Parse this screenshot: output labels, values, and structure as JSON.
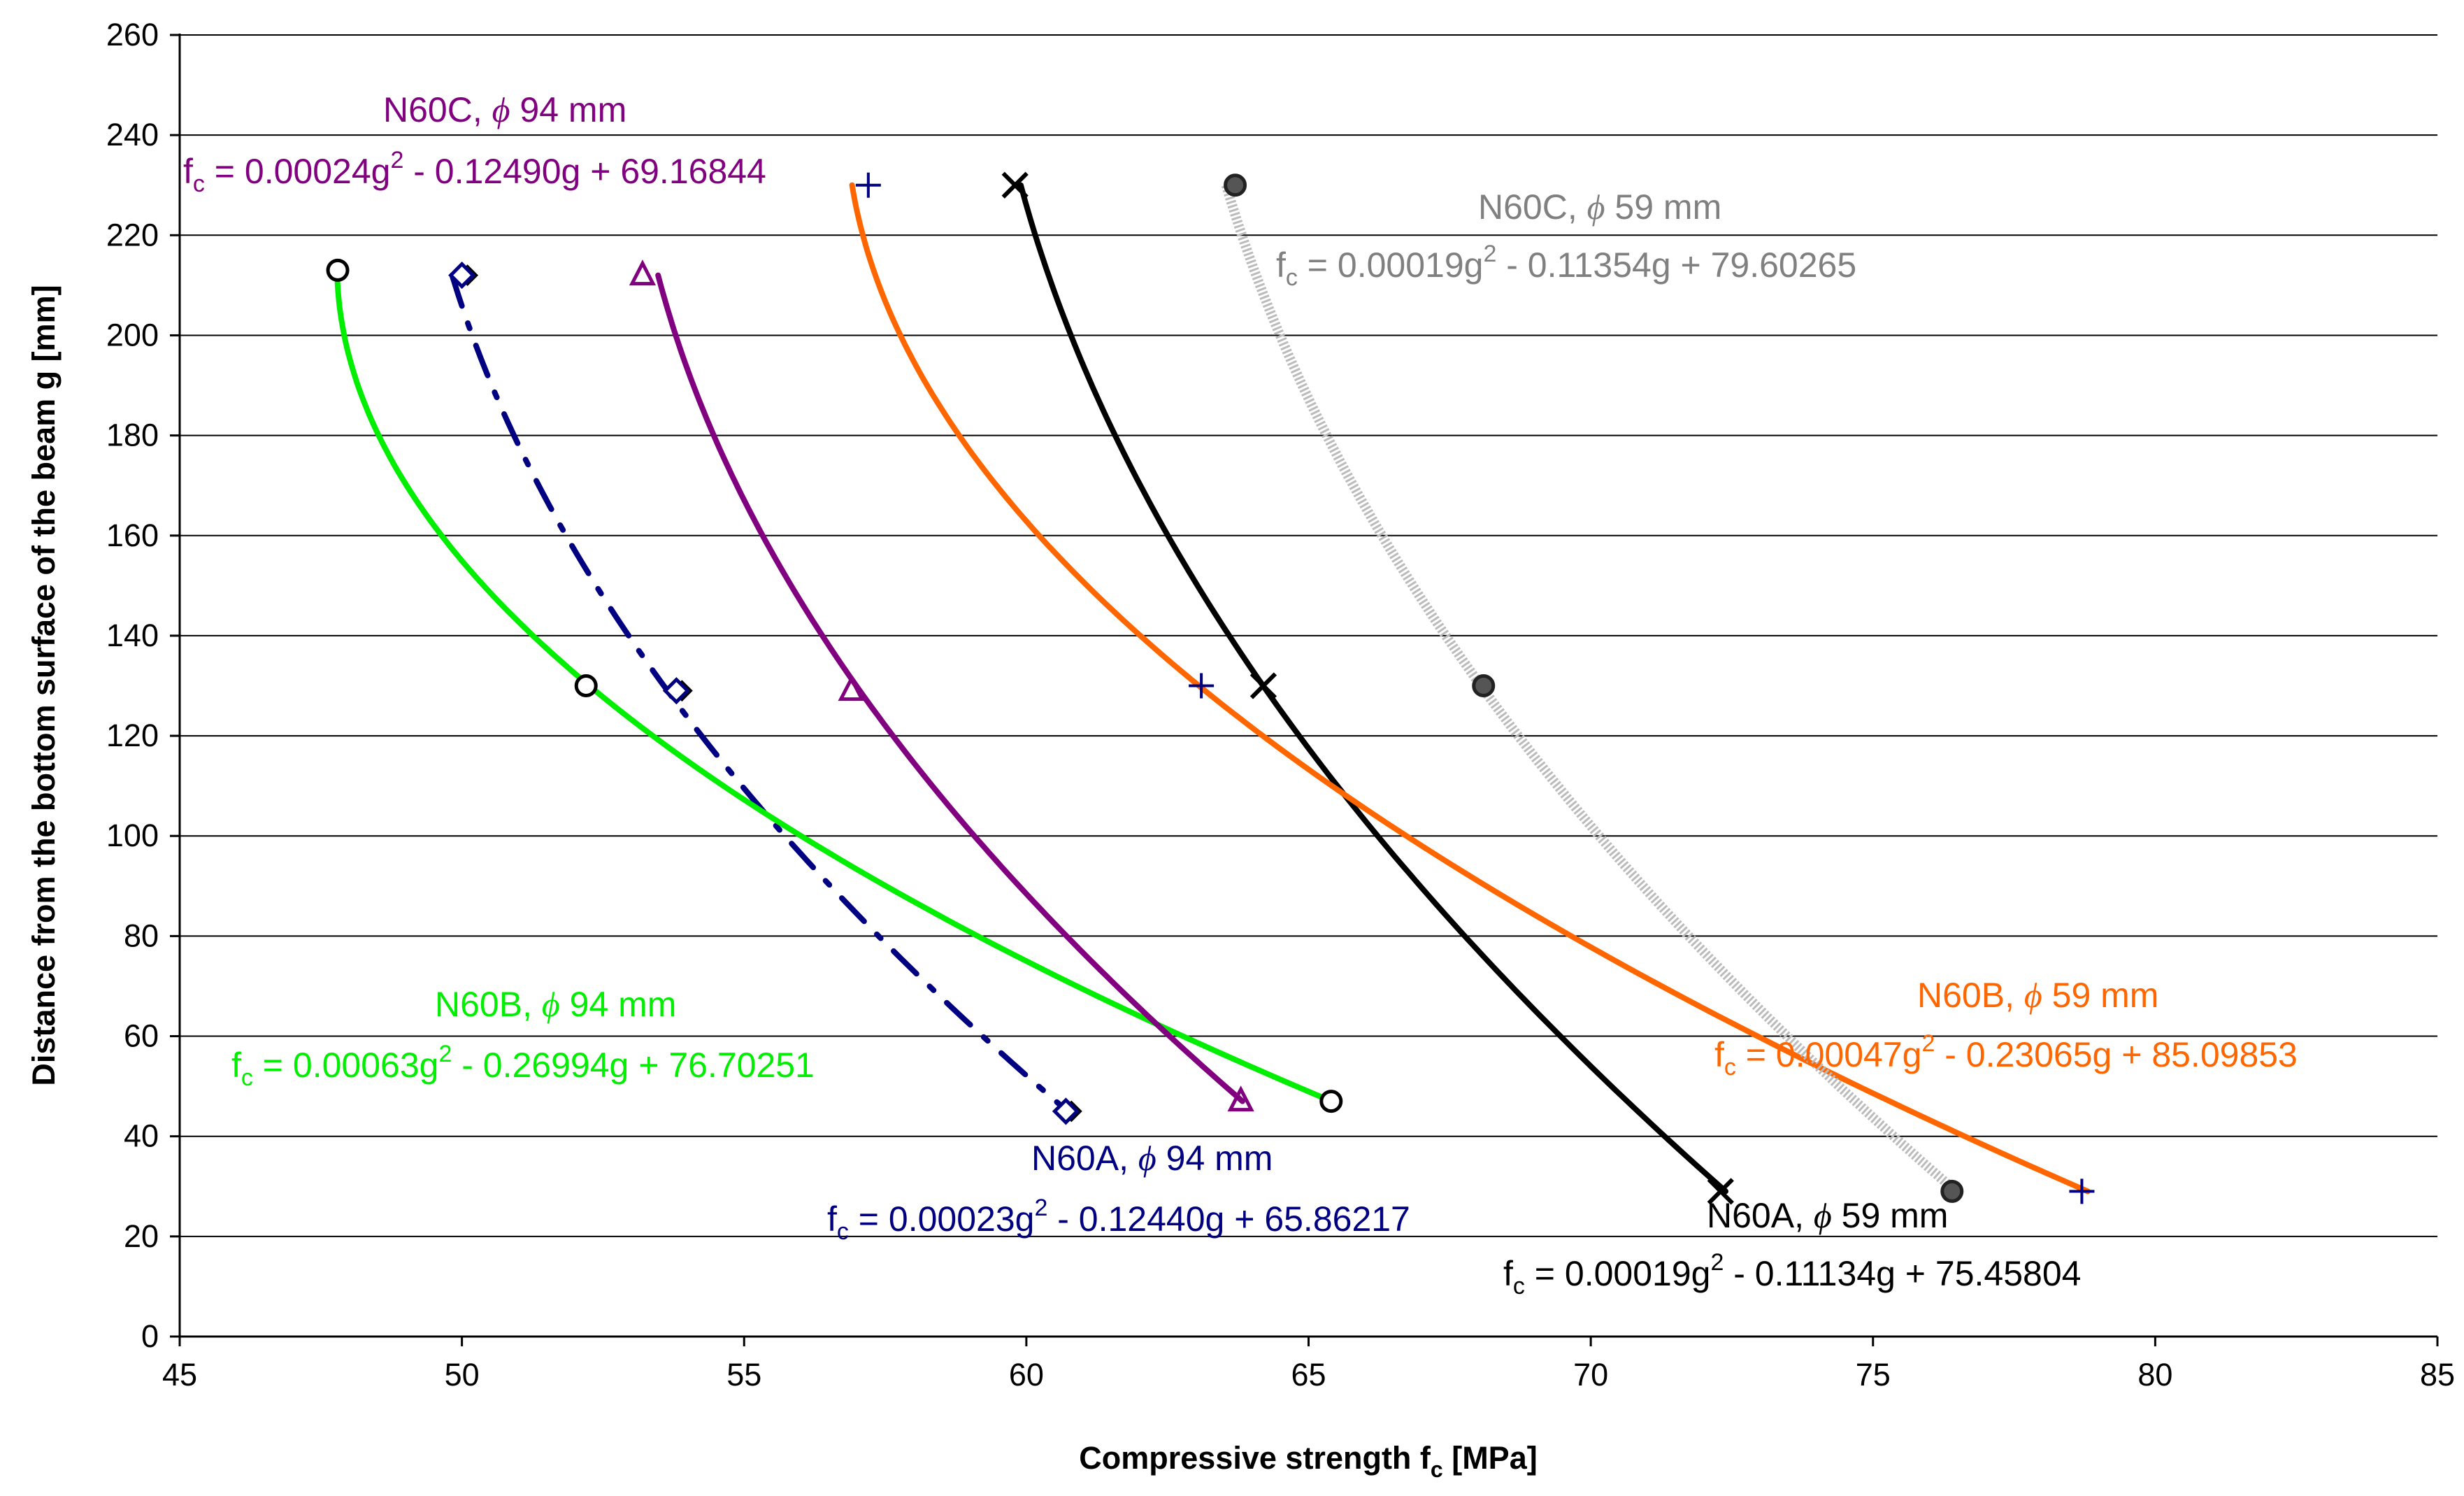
{
  "chart_data": {
    "type": "scatter",
    "title": "",
    "xlabel": "Compressive strength f",
    "xlabel_sub": "c",
    "xlabel_unit": " [MPa]",
    "ylabel": "Distance from the bottom surface of the beam g [mm]",
    "xlim": [
      45,
      85
    ],
    "ylim": [
      0,
      260
    ],
    "x_ticks": [
      45,
      50,
      55,
      60,
      65,
      70,
      75,
      80,
      85
    ],
    "y_ticks": [
      0,
      20,
      40,
      60,
      80,
      100,
      120,
      140,
      160,
      180,
      200,
      220,
      240,
      260
    ],
    "grid": "horizontal",
    "legend": "none",
    "series": [
      {
        "name": "N60A, ϕ 94 mm",
        "color": "#000080",
        "line_style": "dash-dot",
        "marker": "diamond-filled",
        "points": [
          {
            "x": 50,
            "y": 212
          },
          {
            "x": 53.8,
            "y": 129
          },
          {
            "x": 60.7,
            "y": 45
          }
        ],
        "fit": {
          "a": 0.00023,
          "b": -0.1244,
          "c": 65.86217
        }
      },
      {
        "name": "N60B, ϕ 94 mm",
        "color": "#00ee00",
        "line_style": "solid",
        "marker": "circle-open",
        "points": [
          {
            "x": 47.8,
            "y": 213
          },
          {
            "x": 52.2,
            "y": 130
          },
          {
            "x": 65.4,
            "y": 47
          }
        ],
        "fit": {
          "a": 0.00063,
          "b": -0.26994,
          "c": 76.70251
        }
      },
      {
        "name": "N60C, ϕ 94 mm",
        "color": "#800080",
        "line_style": "solid",
        "marker": "triangle-open",
        "points": [
          {
            "x": 53.2,
            "y": 212
          },
          {
            "x": 56.9,
            "y": 129
          },
          {
            "x": 63.8,
            "y": 47
          }
        ],
        "fit": {
          "a": 0.00024,
          "b": -0.1249,
          "c": 69.16844
        }
      },
      {
        "name": "N60A, ϕ 59 mm",
        "color": "#000000",
        "line_style": "solid",
        "marker": "x",
        "points": [
          {
            "x": 59.8,
            "y": 230
          },
          {
            "x": 64.2,
            "y": 130
          },
          {
            "x": 72.3,
            "y": 29
          }
        ],
        "fit": {
          "a": 0.00019,
          "b": -0.11134,
          "c": 75.45804
        }
      },
      {
        "name": "N60B, ϕ 59 mm",
        "color": "#ff6600",
        "line_style": "solid",
        "marker": "plus",
        "points": [
          {
            "x": 57.2,
            "y": 230
          },
          {
            "x": 63.1,
            "y": 130
          },
          {
            "x": 78.7,
            "y": 29
          }
        ],
        "fit": {
          "a": 0.00047,
          "b": -0.23065,
          "c": 85.09853
        }
      },
      {
        "name": "N60C, ϕ 59 mm",
        "color": "#aaaaaa",
        "line_style": "dotted-band",
        "marker": "circle-dark",
        "points": [
          {
            "x": 63.7,
            "y": 230
          },
          {
            "x": 68.1,
            "y": 130
          },
          {
            "x": 76.4,
            "y": 29
          }
        ],
        "fit": {
          "a": 0.00019,
          "b": -0.11354,
          "c": 79.60265
        }
      }
    ],
    "annotations": [
      {
        "series": "N60C, ϕ 94 mm",
        "color": "#800080",
        "name_prefix": "N60C, ",
        "phi": "ϕ",
        "name_suffix": " 94 mm",
        "eq_lhs": "f",
        "eq_sub": "c",
        "eq_a": " = 0.00024g",
        "eq_sup": "2",
        "eq_b": " - 0.12490g + 69.16844"
      },
      {
        "series": "N60C, ϕ 59 mm",
        "color": "#808080",
        "name_prefix": "N60C, ",
        "phi": "ϕ",
        "name_suffix": " 59 mm",
        "eq_lhs": "f",
        "eq_sub": "c",
        "eq_a": " = 0.00019g",
        "eq_sup": "2",
        "eq_b": " - 0.11354g + 79.60265"
      },
      {
        "series": "N60B, ϕ 94 mm",
        "color": "#00ee00",
        "name_prefix": "N60B, ",
        "phi": "ϕ",
        "name_suffix": " 94 mm",
        "eq_lhs": "f",
        "eq_sub": "c",
        "eq_a": " = 0.00063g",
        "eq_sup": "2",
        "eq_b": " - 0.26994g + 76.70251"
      },
      {
        "series": "N60A, ϕ 94 mm",
        "color": "#000080",
        "name_prefix": "N60A, ",
        "phi": "ϕ",
        "name_suffix": " 94 mm",
        "eq_lhs": "f",
        "eq_sub": "c",
        "eq_a": " = 0.00023g",
        "eq_sup": "2",
        "eq_b": " - 0.12440g + 65.86217"
      },
      {
        "series": "N60B, ϕ 59 mm",
        "color": "#ff6600",
        "name_prefix": "N60B, ",
        "phi": "ϕ",
        "name_suffix": " 59 mm",
        "eq_lhs": "f",
        "eq_sub": "c",
        "eq_a": " = 0.00047g",
        "eq_sup": "2",
        "eq_b": " - 0.23065g + 85.09853"
      },
      {
        "series": "N60A, ϕ 59 mm",
        "color": "#000000",
        "name_prefix": "N60A, ",
        "phi": "ϕ",
        "name_suffix": " 59 mm",
        "eq_lhs": "f",
        "eq_sub": "c",
        "eq_a": " = 0.00019g",
        "eq_sup": "2",
        "eq_b": " - 0.11134g + 75.45804"
      }
    ]
  }
}
